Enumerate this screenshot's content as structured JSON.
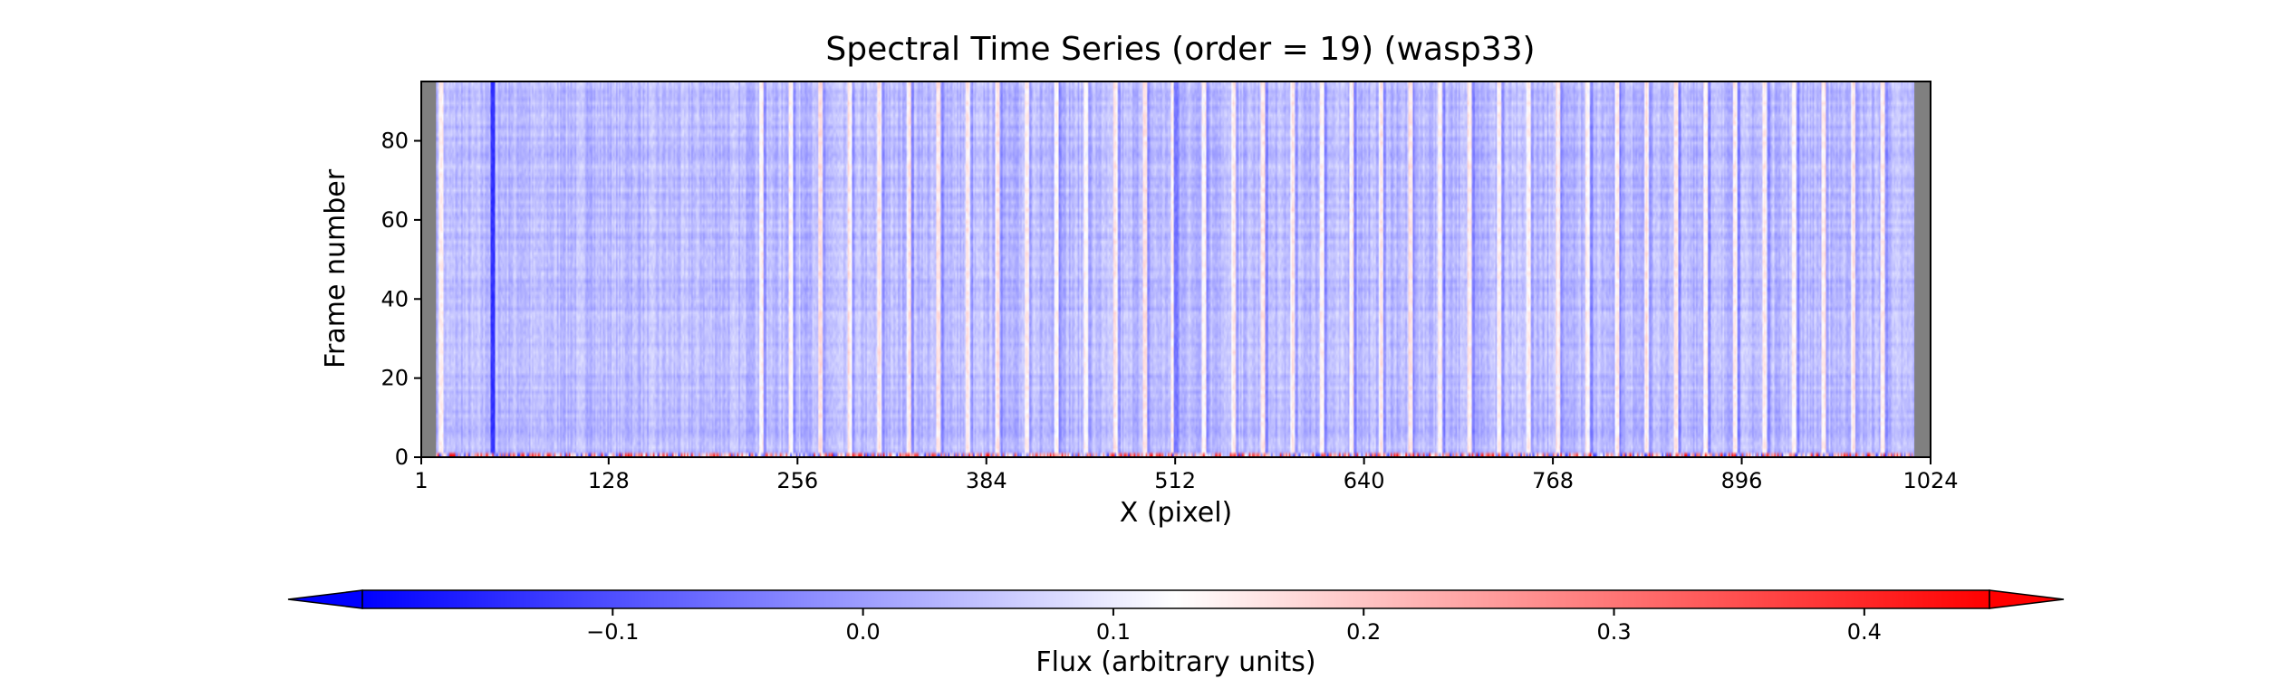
{
  "chart_data": {
    "type": "heatmap",
    "title": "Spectral Time Series (order = 19) (wasp33)",
    "xlabel": "X (pixel)",
    "ylabel": "Frame number",
    "x_ticks": [
      1,
      128,
      256,
      384,
      512,
      640,
      768,
      896,
      1024
    ],
    "y_ticks": [
      0,
      20,
      40,
      60,
      80
    ],
    "xlim": [
      1,
      1024
    ],
    "ylim": [
      0,
      95
    ],
    "frames": 95,
    "data_x_range": [
      11,
      1012
    ],
    "background_value": 0.02,
    "vertical_features": [
      {
        "x": 49,
        "value": -0.14
      },
      {
        "x": 14,
        "value": 0.12
      },
      {
        "x": 510,
        "value": 0.12
      },
      {
        "x": 512,
        "value": -0.06
      }
    ],
    "periodic_features": {
      "start_x": 230,
      "end_x": 1000,
      "spacing": 20,
      "values": [
        -0.05,
        0.1
      ]
    },
    "bottom_row_values": "mixed, -0.15 to 0.45",
    "grid": false,
    "colorbar": {
      "label": "Flux (arbitrary units)",
      "cmap": "bwr",
      "vmin": -0.2,
      "vmax": 0.45,
      "center": 0.1,
      "ticks": [
        {
          "value": -0.1,
          "label": "−0.1"
        },
        {
          "value": 0.0,
          "label": "0.0"
        },
        {
          "value": 0.1,
          "label": "0.1"
        },
        {
          "value": 0.2,
          "label": "0.2"
        },
        {
          "value": 0.3,
          "label": "0.3"
        },
        {
          "value": 0.4,
          "label": "0.4"
        }
      ],
      "extend": "both"
    },
    "missing_color": "#808080"
  }
}
